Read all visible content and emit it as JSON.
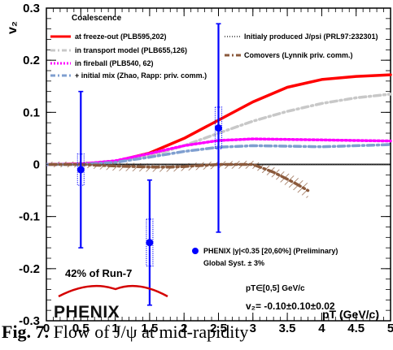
{
  "chart_data": {
    "type": "line",
    "ylabel": "v₂",
    "xlabel": "pT (GeV/c)",
    "xlim": [
      0,
      5
    ],
    "ylim": [
      -0.3,
      0.3
    ],
    "x_ticks": [
      "0",
      "0.5",
      "1",
      "1.5",
      "2",
      "2.5",
      "3",
      "3.5",
      "4",
      "4.5",
      "5"
    ],
    "y_ticks": [
      "-0.3",
      "-0.2",
      "-0.1",
      "0",
      "0.1",
      "0.2",
      "0.3"
    ],
    "legend_title": "Coalescence",
    "series": [
      {
        "name": "at freeze-out (PLB595,202)",
        "color": "#ff0000",
        "style": "solid",
        "x": [
          0,
          0.5,
          1.0,
          1.5,
          2.0,
          2.5,
          3.0,
          3.5,
          4.0,
          4.5,
          5.0
        ],
        "y": [
          0.0,
          0.001,
          0.006,
          0.022,
          0.05,
          0.085,
          0.12,
          0.148,
          0.163,
          0.169,
          0.172
        ]
      },
      {
        "name": "in transport model (PLB655,126)",
        "color": "#c8c8c8",
        "style": "dash-dot",
        "x": [
          0,
          0.5,
          1.0,
          1.5,
          2.0,
          2.5,
          3.0,
          3.5,
          4.0,
          4.5,
          5.0
        ],
        "y": [
          0.0,
          0.0,
          0.004,
          0.016,
          0.036,
          0.06,
          0.083,
          0.102,
          0.117,
          0.128,
          0.135
        ]
      },
      {
        "name": "in fireball (PLB540, 62)",
        "color": "#ff00ff",
        "style": "dotted",
        "x": [
          0,
          0.5,
          1.0,
          1.5,
          2.0,
          2.5,
          3.0,
          3.5,
          4.0,
          4.5,
          5.0
        ],
        "y": [
          0.0,
          0.001,
          0.007,
          0.021,
          0.036,
          0.046,
          0.049,
          0.048,
          0.047,
          0.046,
          0.045
        ]
      },
      {
        "name": "+ initial mix (Zhao, Rapp: priv. comm.)",
        "color": "#7f9fd0",
        "style": "dash-dot",
        "x": [
          0,
          0.5,
          1.0,
          1.5,
          2.0,
          2.5,
          3.0,
          3.5,
          4.0,
          4.5,
          5.0
        ],
        "y": [
          0.0,
          0.0,
          0.004,
          0.014,
          0.025,
          0.033,
          0.036,
          0.035,
          0.034,
          0.036,
          0.038
        ]
      },
      {
        "name": "Initialy produced J/psi (PRL97:232301)",
        "color": "#333333",
        "style": "dotted",
        "x": [
          0,
          0.5,
          1.0,
          1.5,
          2.0,
          2.5,
          3.0,
          3.5,
          4.0,
          4.5,
          5.0
        ],
        "y": [
          0.0,
          0.0,
          0.0,
          0.0,
          0.0,
          0.0,
          0.0,
          0.0,
          0.0,
          0.0,
          0.0
        ]
      },
      {
        "name": "Comovers (Lynnik priv. comm.)",
        "color": "#8b5a3c",
        "style": "dash-dot",
        "x": [
          0.05,
          0.5,
          1.0,
          1.5,
          1.8,
          2.0,
          2.5,
          3.0,
          3.3,
          3.6,
          3.8
        ],
        "y": [
          0.0,
          0.0,
          -0.003,
          -0.005,
          -0.005,
          -0.004,
          0.0,
          0.0,
          -0.015,
          -0.035,
          -0.05
        ],
        "band_upper": [
          0.005,
          0.006,
          0.004,
          0.002,
          0.001,
          0.002,
          0.006,
          0.007,
          -0.005,
          -0.022,
          -0.036
        ],
        "band_lower": [
          -0.005,
          -0.006,
          -0.012,
          -0.014,
          -0.014,
          -0.012,
          -0.008,
          -0.008,
          -0.026,
          -0.05,
          -0.066
        ]
      }
    ],
    "data_points": {
      "name": "PHENIX |y|<0.35 [20,60%] (Preliminary)",
      "color": "#0000ff",
      "x": [
        0.5,
        1.5,
        2.5
      ],
      "y": [
        -0.01,
        -0.15,
        0.07
      ],
      "stat_err": [
        0.15,
        0.12,
        0.2
      ],
      "sys_err": [
        0.03,
        0.045,
        0.04
      ]
    },
    "annotations": {
      "global_syst": "Global Syst. ± 3%",
      "pt_range": "pT∈[0,5] GeV/c",
      "v2_result": "v₂= -0.10±0.10±0.02",
      "run_label": "42% of Run-7",
      "logo": "PHENIX"
    }
  },
  "caption": {
    "label": "Fig. 7.",
    "text": " Flow of J/ψ at mid-rapidity"
  }
}
